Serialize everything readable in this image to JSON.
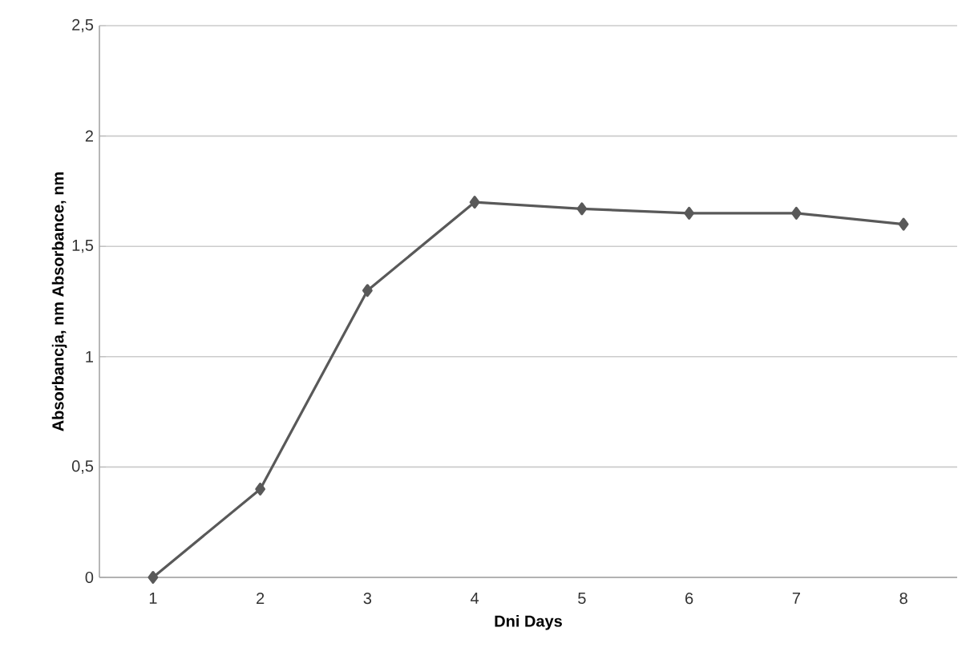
{
  "chart_data": {
    "type": "line",
    "xlabel": "Dni Days",
    "ylabel": "Absorbancja, nm Absorbance, nm",
    "categories": [
      "1",
      "2",
      "3",
      "4",
      "5",
      "6",
      "7",
      "8"
    ],
    "series": [
      {
        "color": "#595959",
        "values": [
          0,
          0.4,
          1.3,
          1.7,
          1.67,
          1.65,
          1.65,
          1.6
        ]
      }
    ],
    "ylim": [
      0,
      2.5
    ],
    "yticks": [
      0,
      {
        "value": 0.5,
        "label": "0,5"
      },
      1,
      {
        "value": 1.5,
        "label": "1,5"
      },
      2,
      {
        "value": 2.5,
        "label": "2,5"
      }
    ],
    "grid": "y",
    "marker": "diamond",
    "line_style": "solid"
  }
}
